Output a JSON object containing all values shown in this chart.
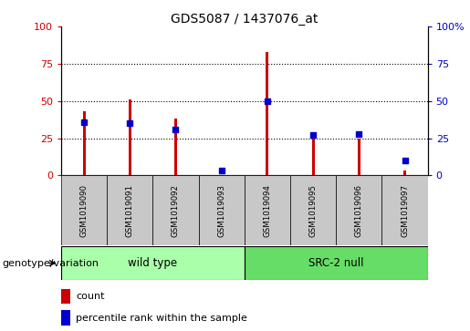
{
  "title": "GDS5087 / 1437076_at",
  "samples": [
    "GSM1019090",
    "GSM1019091",
    "GSM1019092",
    "GSM1019093",
    "GSM1019094",
    "GSM1019095",
    "GSM1019096",
    "GSM1019097"
  ],
  "count_values": [
    43,
    51,
    38,
    0.5,
    83,
    25,
    25,
    3
  ],
  "percentile_values": [
    36,
    35,
    31,
    3,
    50,
    27,
    28,
    10
  ],
  "groups": [
    {
      "label": "wild type",
      "indices": [
        0,
        1,
        2,
        3
      ],
      "color": "#aaffaa"
    },
    {
      "label": "SRC-2 null",
      "indices": [
        4,
        5,
        6,
        7
      ],
      "color": "#66dd66"
    }
  ],
  "group_label_prefix": "genotype/variation",
  "ylim": [
    0,
    100
  ],
  "yticks": [
    0,
    25,
    50,
    75,
    100
  ],
  "count_color": "#cc0000",
  "percentile_color": "#0000cc",
  "sample_box_color": "#c8c8c8",
  "legend_items": [
    "count",
    "percentile rank within the sample"
  ],
  "title_fontsize": 10,
  "tick_fontsize": 8,
  "right_ytick_labels": [
    "0",
    "25",
    "50",
    "75",
    "100%"
  ]
}
